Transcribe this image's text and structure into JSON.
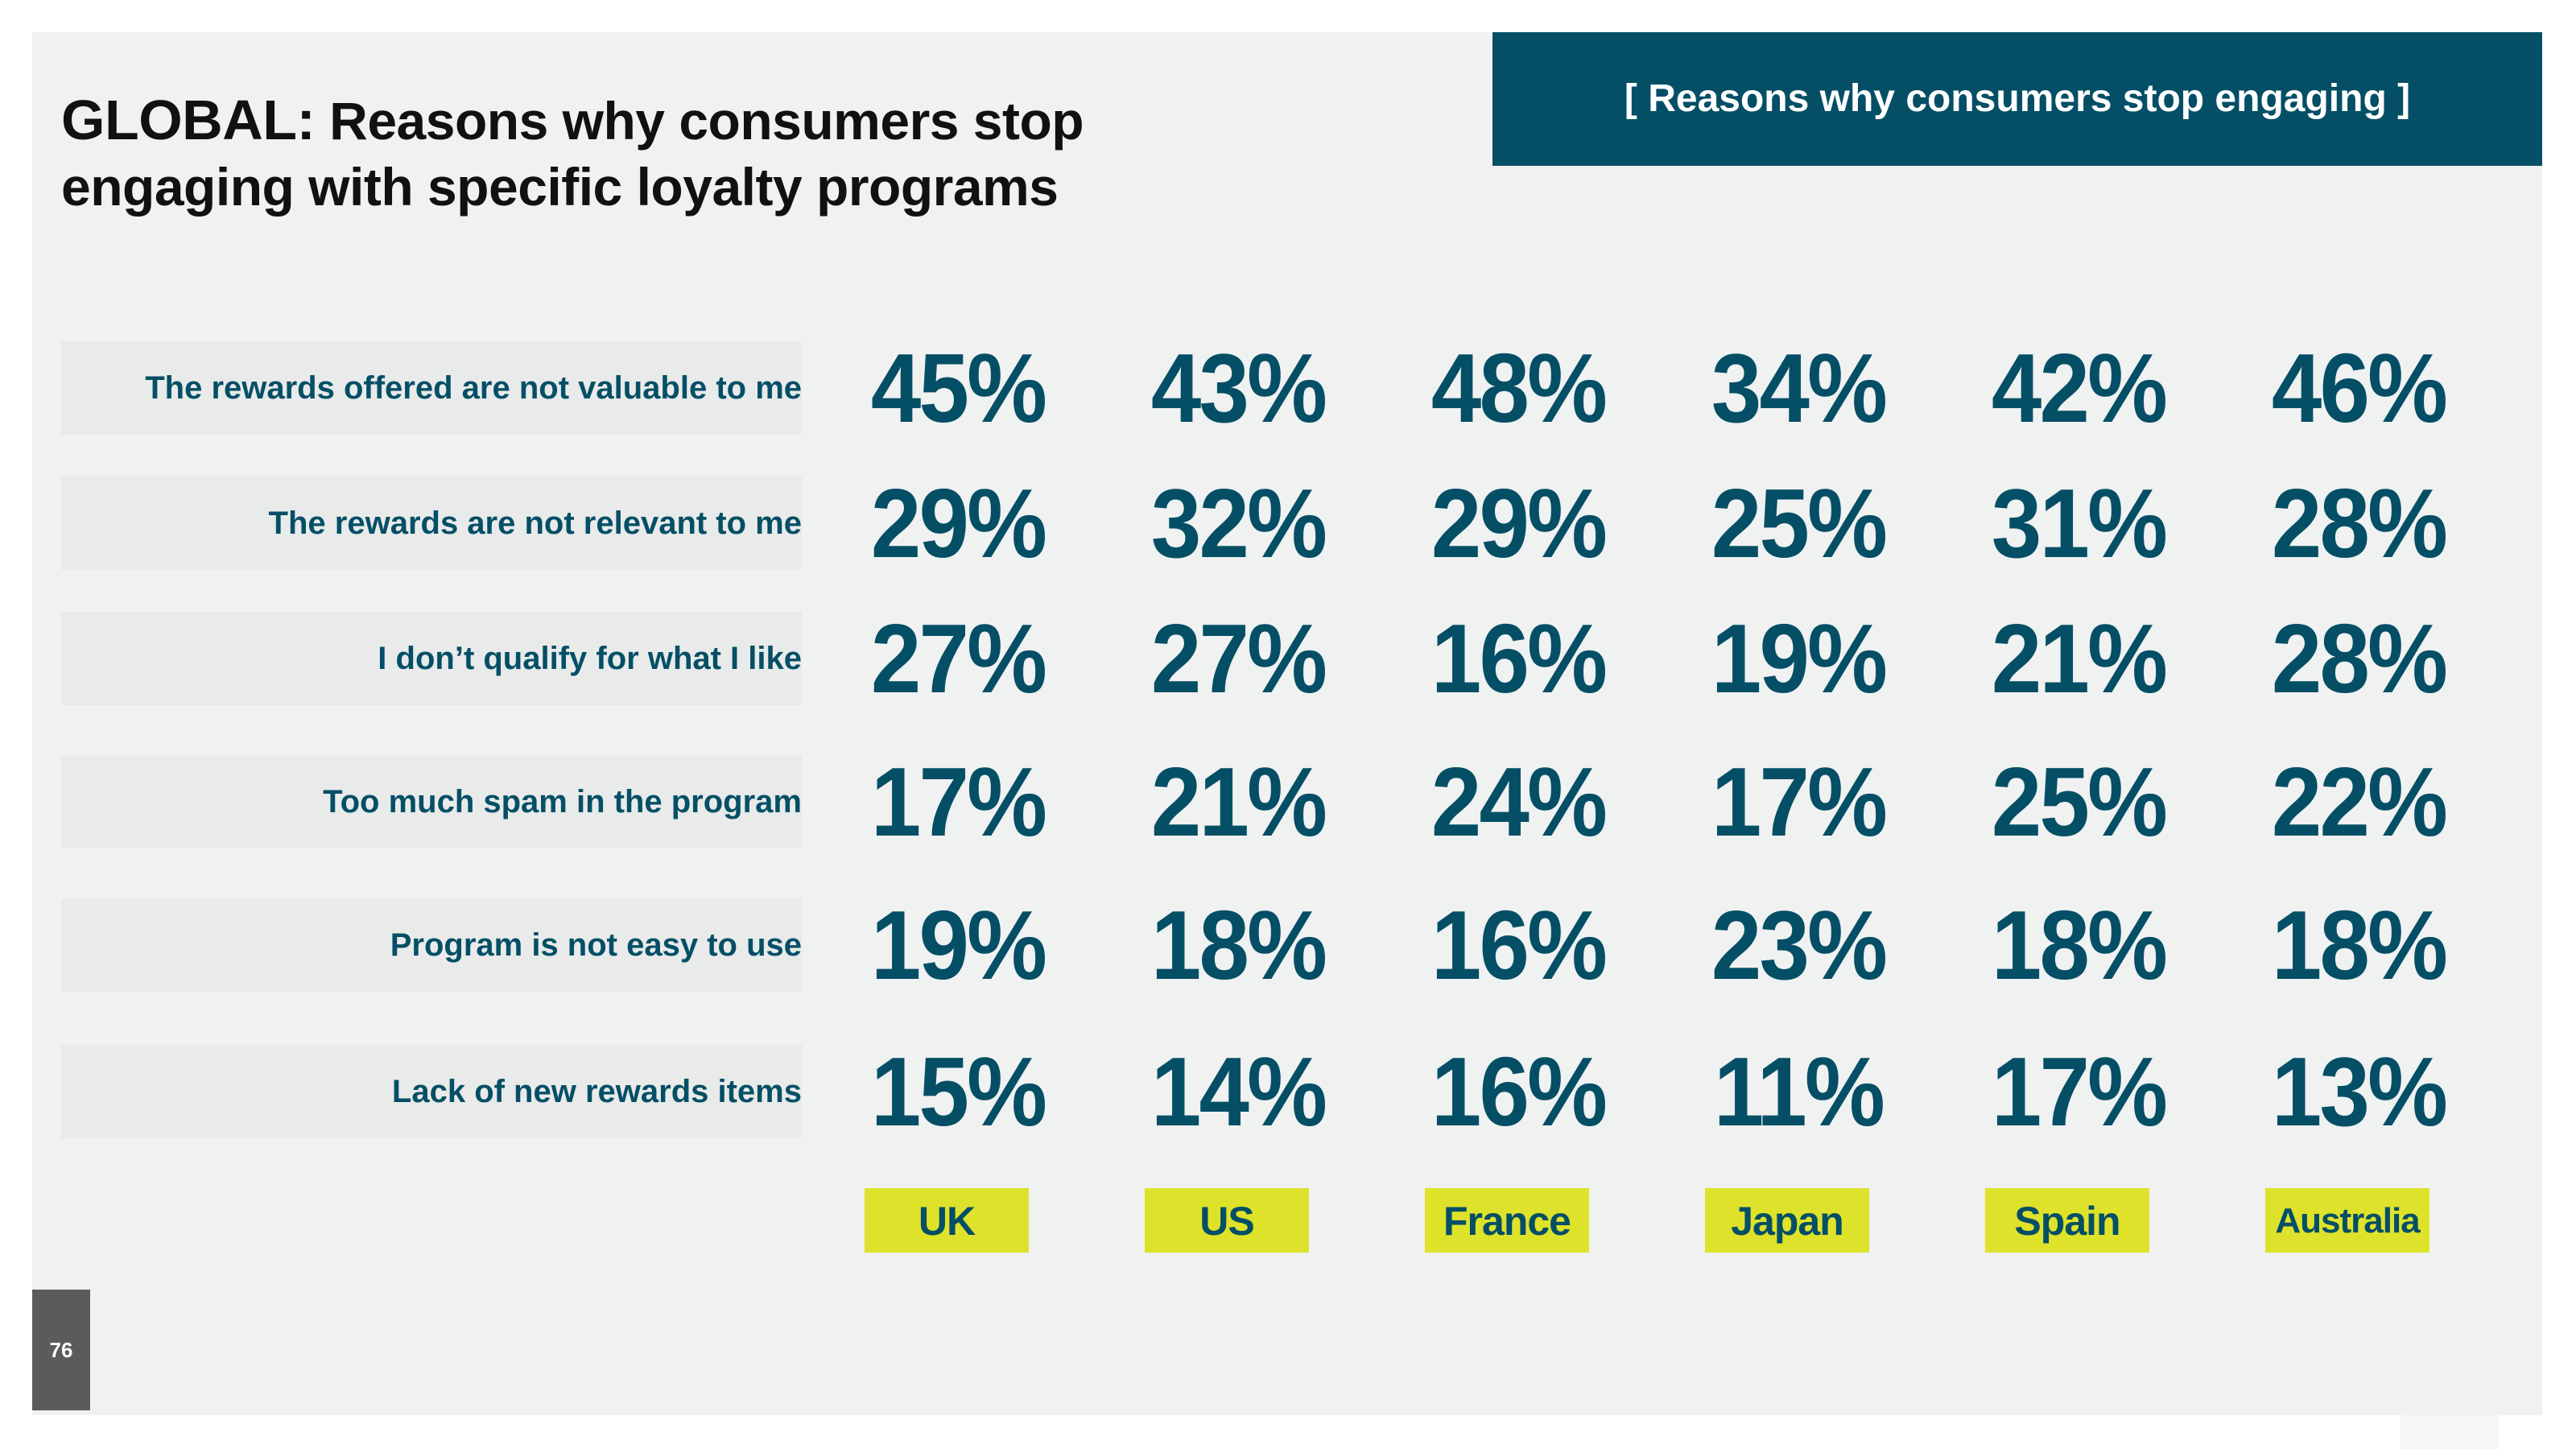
{
  "header": {
    "title_lead": "GLOBAL:",
    "title_rest": " Reasons why consumers stop engaging with specific loyalty programs",
    "banner": "[ Reasons why consumers stop engaging ]"
  },
  "page": {
    "number": "76"
  },
  "colors": {
    "primary": "#044f66",
    "highlight": "#dfe22a",
    "background": "#f0f1f1"
  },
  "chart_data": {
    "type": "table",
    "title": "GLOBAL: Reasons why consumers stop engaging with specific loyalty programs",
    "unit": "%",
    "categories": [
      "UK",
      "US",
      "France",
      "Japan",
      "Spain",
      "Australia"
    ],
    "rows": [
      {
        "label": "The rewards offered are not valuable to me",
        "values": [
          45,
          43,
          48,
          34,
          42,
          46
        ]
      },
      {
        "label": "The rewards are not relevant to me",
        "values": [
          29,
          32,
          29,
          25,
          31,
          28
        ]
      },
      {
        "label": "I don’t qualify for what I like",
        "values": [
          27,
          27,
          16,
          19,
          21,
          28
        ]
      },
      {
        "label": "Too much spam in the program",
        "values": [
          17,
          21,
          24,
          17,
          25,
          22
        ]
      },
      {
        "label": "Program is not easy to use",
        "values": [
          19,
          18,
          16,
          23,
          18,
          18
        ]
      },
      {
        "label": "Lack of new rewards items",
        "values": [
          15,
          14,
          16,
          11,
          17,
          13
        ]
      }
    ]
  }
}
